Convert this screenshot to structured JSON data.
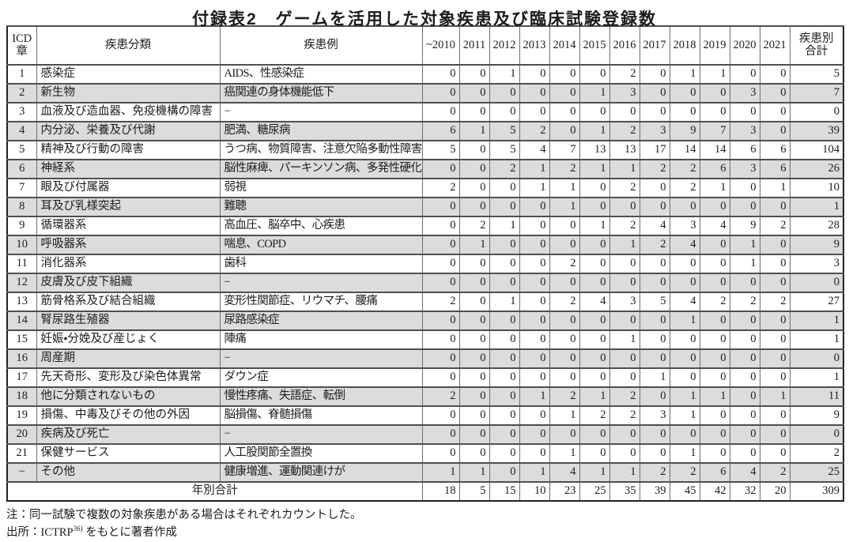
{
  "title": "付録表2　ゲームを活用した対象疾患及び臨床試験登録数",
  "table": {
    "headers": {
      "icd_lines": [
        "ICD",
        "章"
      ],
      "category": "疾患分類",
      "examples": "疾患例",
      "years": [
        "~2010",
        "2011",
        "2012",
        "2013",
        "2014",
        "2015",
        "2016",
        "2017",
        "2018",
        "2019",
        "2020",
        "2021"
      ],
      "row_total_lines": [
        "疾患別",
        "合計"
      ]
    },
    "rows": [
      {
        "icd": "1",
        "category": "感染症",
        "examples": "AIDS、性感染症",
        "values": [
          0,
          0,
          1,
          0,
          0,
          0,
          2,
          0,
          1,
          1,
          0,
          0
        ],
        "total": 5
      },
      {
        "icd": "2",
        "category": "新生物",
        "examples": "癌関連の身体機能低下",
        "values": [
          0,
          0,
          0,
          0,
          0,
          1,
          3,
          0,
          0,
          0,
          3,
          0
        ],
        "total": 7
      },
      {
        "icd": "3",
        "category": "血液及び造血器、免疫機構の障害",
        "examples": "−",
        "values": [
          0,
          0,
          0,
          0,
          0,
          0,
          0,
          0,
          0,
          0,
          0,
          0
        ],
        "total": 0
      },
      {
        "icd": "4",
        "category": "内分泌、栄養及び代謝",
        "examples": "肥満、糖尿病",
        "values": [
          6,
          1,
          5,
          2,
          0,
          1,
          2,
          3,
          9,
          7,
          3,
          0
        ],
        "total": 39
      },
      {
        "icd": "5",
        "category": "精神及び行動の障害",
        "examples": "うつ病、物質障害、注意欠陥多動性障害",
        "values": [
          5,
          0,
          5,
          4,
          7,
          13,
          13,
          17,
          14,
          14,
          6,
          6
        ],
        "total": 104
      },
      {
        "icd": "6",
        "category": "神経系",
        "examples": "脳性麻痺、パーキンソン病、多発性硬化症",
        "values": [
          0,
          0,
          2,
          1,
          2,
          1,
          1,
          2,
          2,
          6,
          3,
          6
        ],
        "total": 26
      },
      {
        "icd": "7",
        "category": "眼及び付属器",
        "examples": "弱視",
        "values": [
          2,
          0,
          0,
          1,
          1,
          0,
          2,
          0,
          2,
          1,
          0,
          1
        ],
        "total": 10
      },
      {
        "icd": "8",
        "category": "耳及び乳様突起",
        "examples": "難聴",
        "values": [
          0,
          0,
          0,
          0,
          1,
          0,
          0,
          0,
          0,
          0,
          0,
          0
        ],
        "total": 1
      },
      {
        "icd": "9",
        "category": "循環器系",
        "examples": "高血圧、脳卒中、心疾患",
        "values": [
          0,
          2,
          1,
          0,
          0,
          1,
          2,
          4,
          3,
          4,
          9,
          2
        ],
        "total": 28
      },
      {
        "icd": "10",
        "category": "呼吸器系",
        "examples": "喘息、COPD",
        "values": [
          0,
          1,
          0,
          0,
          0,
          0,
          1,
          2,
          4,
          0,
          1,
          0
        ],
        "total": 9
      },
      {
        "icd": "11",
        "category": "消化器系",
        "examples": "歯科",
        "values": [
          0,
          0,
          0,
          0,
          2,
          0,
          0,
          0,
          0,
          0,
          1,
          0
        ],
        "total": 3
      },
      {
        "icd": "12",
        "category": "皮膚及び皮下組織",
        "examples": "−",
        "values": [
          0,
          0,
          0,
          0,
          0,
          0,
          0,
          0,
          0,
          0,
          0,
          0
        ],
        "total": 0
      },
      {
        "icd": "13",
        "category": "筋骨格系及び結合組織",
        "examples": "変形性関節症、リウマチ、腰痛",
        "values": [
          2,
          0,
          1,
          0,
          2,
          4,
          3,
          5,
          4,
          2,
          2,
          2
        ],
        "total": 27
      },
      {
        "icd": "14",
        "category": "腎尿路生殖器",
        "examples": "尿路感染症",
        "values": [
          0,
          0,
          0,
          0,
          0,
          0,
          0,
          0,
          1,
          0,
          0,
          0
        ],
        "total": 1
      },
      {
        "icd": "15",
        "category": "妊娠・分娩及び産じょく",
        "examples": "陣痛",
        "values": [
          0,
          0,
          0,
          0,
          0,
          0,
          1,
          0,
          0,
          0,
          0,
          0
        ],
        "total": 1
      },
      {
        "icd": "16",
        "category": "周産期",
        "examples": "−",
        "values": [
          0,
          0,
          0,
          0,
          0,
          0,
          0,
          0,
          0,
          0,
          0,
          0
        ],
        "total": 0
      },
      {
        "icd": "17",
        "category": "先天奇形、変形及び染色体異常",
        "examples": "ダウン症",
        "values": [
          0,
          0,
          0,
          0,
          0,
          0,
          0,
          1,
          0,
          0,
          0,
          0
        ],
        "total": 1
      },
      {
        "icd": "18",
        "category": "他に分類されないもの",
        "examples": "慢性疼痛、失語症、転倒",
        "values": [
          2,
          0,
          0,
          1,
          2,
          1,
          2,
          0,
          1,
          1,
          0,
          1
        ],
        "total": 11
      },
      {
        "icd": "19",
        "category": "損傷、中毒及びその他の外因",
        "examples": "脳損傷、脊髄損傷",
        "values": [
          0,
          0,
          0,
          0,
          1,
          2,
          2,
          3,
          1,
          0,
          0,
          0
        ],
        "total": 9
      },
      {
        "icd": "20",
        "category": "疾病及び死亡",
        "examples": "−",
        "values": [
          0,
          0,
          0,
          0,
          0,
          0,
          0,
          0,
          0,
          0,
          0,
          0
        ],
        "total": 0
      },
      {
        "icd": "21",
        "category": "保健サービス",
        "examples": "人工股関節全置換",
        "values": [
          0,
          0,
          0,
          0,
          1,
          0,
          0,
          0,
          1,
          0,
          0,
          0
        ],
        "total": 2
      },
      {
        "icd": "−",
        "category": "その他",
        "examples": "健康増進、運動関連けが",
        "values": [
          1,
          1,
          0,
          1,
          4,
          1,
          1,
          2,
          2,
          6,
          4,
          2
        ],
        "total": 25
      }
    ],
    "total_row": {
      "label": "年別合計",
      "values": [
        18,
        5,
        15,
        10,
        23,
        25,
        35,
        39,
        45,
        42,
        32,
        20
      ],
      "total": 309
    }
  },
  "notes": {
    "count_note": "注：同一試験で複数の対象疾患がある場合はそれぞれカウントした。",
    "source_prefix": "出所：ICTRP",
    "source_sup": "36)",
    "source_suffix": " をもとに著者作成"
  }
}
